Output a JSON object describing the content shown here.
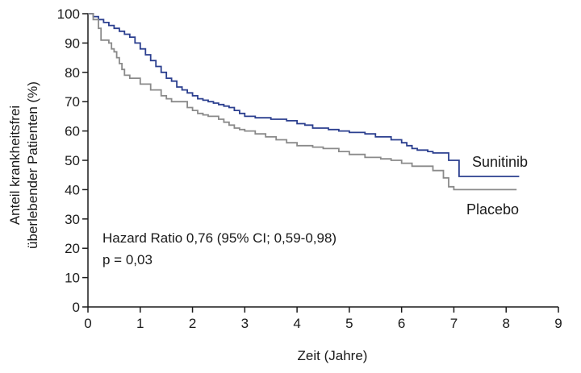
{
  "chart_data": {
    "type": "line",
    "xlabel": "Zeit (Jahre)",
    "ylabel_lines": [
      "Anteil krankheitsfrei",
      "überlebender Patienten (%)"
    ],
    "xlim": [
      0,
      9
    ],
    "ylim": [
      0,
      100
    ],
    "x_ticks": [
      0,
      1,
      2,
      3,
      4,
      5,
      6,
      7,
      8,
      9
    ],
    "y_ticks": [
      0,
      10,
      20,
      30,
      40,
      50,
      60,
      70,
      80,
      90,
      100
    ],
    "grid": false,
    "step": true,
    "annotations": [
      "Hazard Ratio 0,76 (95% CI; 0,59-0,98)",
      "p = 0,03"
    ],
    "series": [
      {
        "name": "Sunitinib",
        "color": "#2b3f8f",
        "x": [
          0,
          0.1,
          0.2,
          0.3,
          0.4,
          0.5,
          0.6,
          0.7,
          0.8,
          0.9,
          1.0,
          1.1,
          1.2,
          1.3,
          1.4,
          1.5,
          1.6,
          1.7,
          1.8,
          1.9,
          2.0,
          2.1,
          2.2,
          2.3,
          2.4,
          2.5,
          2.6,
          2.7,
          2.8,
          2.9,
          3.0,
          3.2,
          3.5,
          3.8,
          4.0,
          4.15,
          4.3,
          4.6,
          4.8,
          5.0,
          5.3,
          5.5,
          5.8,
          6.0,
          6.1,
          6.2,
          6.3,
          6.5,
          6.6,
          6.9,
          7.1,
          8.25
        ],
        "y": [
          100,
          99,
          98,
          97,
          96,
          95,
          94,
          93,
          92,
          90,
          88,
          86,
          84,
          82,
          80,
          78,
          77,
          75,
          74,
          73,
          72,
          71,
          70.5,
          70,
          69.5,
          69,
          68.5,
          68,
          67,
          66,
          65,
          64.5,
          64,
          63.5,
          62.5,
          62,
          61,
          60.5,
          60,
          59.5,
          59,
          58,
          57,
          56,
          55,
          54,
          53.5,
          53,
          52.5,
          50,
          44.5,
          44.5
        ]
      },
      {
        "name": "Placebo",
        "color": "#8a8a8a",
        "x": [
          0,
          0.1,
          0.2,
          0.25,
          0.4,
          0.45,
          0.5,
          0.55,
          0.6,
          0.65,
          0.7,
          0.8,
          1.0,
          1.2,
          1.4,
          1.5,
          1.6,
          1.8,
          1.9,
          2.0,
          2.1,
          2.2,
          2.3,
          2.5,
          2.6,
          2.7,
          2.8,
          2.9,
          3.0,
          3.2,
          3.4,
          3.6,
          3.8,
          4.0,
          4.3,
          4.5,
          4.8,
          5.0,
          5.3,
          5.6,
          5.8,
          6.0,
          6.2,
          6.6,
          6.8,
          6.9,
          7.0,
          8.2
        ],
        "y": [
          100,
          98,
          95,
          91,
          90,
          88,
          87,
          85,
          83,
          81,
          79,
          78,
          76,
          74,
          72,
          71,
          70,
          70,
          68,
          67,
          66,
          65.5,
          65,
          64,
          63,
          62,
          61,
          60.5,
          60,
          59,
          58,
          57,
          56,
          55,
          54.5,
          54,
          53,
          52,
          51,
          50.5,
          50,
          49,
          48,
          46.5,
          44,
          41,
          40,
          40
        ]
      }
    ]
  }
}
